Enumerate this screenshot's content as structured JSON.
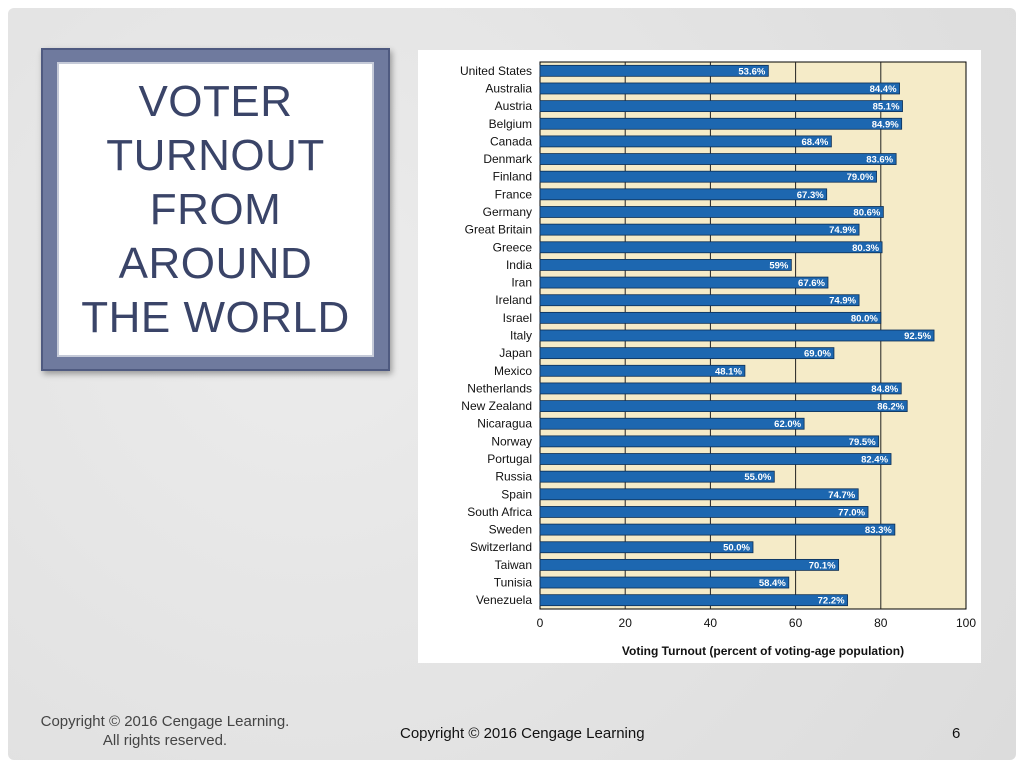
{
  "slide": {
    "title": "VOTER\nTURNOUT\nFROM\nAROUND\nTHE WORLD",
    "footer_left_line1": "Copyright © 2016 Cengage Learning.",
    "footer_left_line2": "All rights reserved.",
    "footer_center": "Copyright © 2016 Cengage Learning",
    "page_number": "6"
  },
  "colors": {
    "bar_fill": "#1d67b0",
    "bar_stroke": "#0d2f55",
    "plot_background": "#f5ebc8",
    "title_text": "#3a4468",
    "frame": "#6f7a9e"
  },
  "chart_data": {
    "type": "bar",
    "orientation": "horizontal",
    "title": "",
    "xlabel": "Voting Turnout (percent of voting-age population)",
    "ylabel": "",
    "xlim": [
      0,
      100
    ],
    "ticks": [
      0,
      20,
      40,
      60,
      80,
      100
    ],
    "grid": true,
    "categories": [
      "United States",
      "Australia",
      "Austria",
      "Belgium",
      "Canada",
      "Denmark",
      "Finland",
      "France",
      "Germany",
      "Great Britain",
      "Greece",
      "India",
      "Iran",
      "Ireland",
      "Israel",
      "Italy",
      "Japan",
      "Mexico",
      "Netherlands",
      "New Zealand",
      "Nicaragua",
      "Norway",
      "Portugal",
      "Russia",
      "Spain",
      "South Africa",
      "Sweden",
      "Switzerland",
      "Taiwan",
      "Tunisia",
      "Venezuela"
    ],
    "values": [
      53.6,
      84.4,
      85.1,
      84.9,
      68.4,
      83.6,
      79.0,
      67.3,
      80.6,
      74.9,
      80.3,
      59,
      67.6,
      74.9,
      80.0,
      92.5,
      69.0,
      48.1,
      84.8,
      86.2,
      62.0,
      79.5,
      82.4,
      55.0,
      74.7,
      77.0,
      83.3,
      50.0,
      70.1,
      58.4,
      72.2
    ],
    "value_labels": [
      "53.6%",
      "84.4%",
      "85.1%",
      "84.9%",
      "68.4%",
      "83.6%",
      "79.0%",
      "67.3%",
      "80.6%",
      "74.9%",
      "80.3%",
      "59%",
      "67.6%",
      "74.9%",
      "80.0%",
      "92.5%",
      "69.0%",
      "48.1%",
      "84.8%",
      "86.2%",
      "62.0%",
      "79.5%",
      "82.4%",
      "55.0%",
      "74.7%",
      "77.0%",
      "83.3%",
      "50.0%",
      "70.1%",
      "58.4%",
      "72.2%"
    ]
  }
}
